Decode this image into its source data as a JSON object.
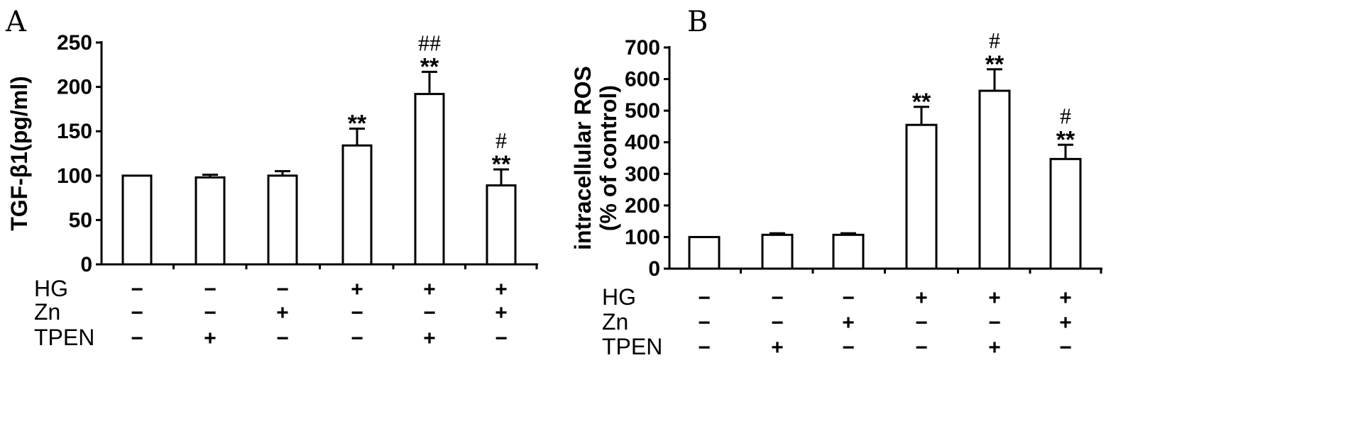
{
  "chart_data": [
    {
      "type": "bar",
      "panel_label": "A",
      "ylabel": "TGF-β1(pg/ml)",
      "ylim": [
        0,
        250
      ],
      "yticks": [
        0,
        50,
        100,
        150,
        200,
        250
      ],
      "yticklabels": [
        "0",
        "50",
        "100",
        "150",
        "200",
        "250"
      ],
      "values": [
        100,
        98,
        100,
        134,
        192,
        89
      ],
      "errors": [
        0,
        3,
        5,
        19,
        25,
        18
      ],
      "star_marks": [
        "",
        "",
        "",
        "**",
        "**",
        "**"
      ],
      "hash_marks": [
        "",
        "",
        "",
        "",
        "##",
        "#"
      ],
      "conditions": [
        {
          "label": "HG",
          "signs": [
            "−",
            "−",
            "−",
            "+",
            "+",
            "+"
          ]
        },
        {
          "label": "Zn",
          "signs": [
            "−",
            "−",
            "+",
            "−",
            "−",
            "+"
          ]
        },
        {
          "label": "TPEN",
          "signs": [
            "−",
            "+",
            "−",
            "−",
            "+",
            "−"
          ]
        }
      ],
      "bar_fill": "#ffffff",
      "stroke_color": "#000000"
    },
    {
      "type": "bar",
      "panel_label": "B",
      "ylabel": [
        "intracellular ROS",
        "(% of control)"
      ],
      "ylim": [
        0,
        700
      ],
      "yticks": [
        0,
        100,
        200,
        300,
        400,
        500,
        600,
        700
      ],
      "yticklabels": [
        "0",
        "100",
        "200",
        "300",
        "400",
        "500",
        "600",
        "700"
      ],
      "values": [
        100,
        107,
        107,
        455,
        563,
        347
      ],
      "errors": [
        0,
        5,
        5,
        57,
        68,
        45
      ],
      "star_marks": [
        "",
        "",
        "",
        "**",
        "**",
        "**"
      ],
      "hash_marks": [
        "",
        "",
        "",
        "",
        "#",
        "#"
      ],
      "conditions": [
        {
          "label": "HG",
          "signs": [
            "−",
            "−",
            "−",
            "+",
            "+",
            "+"
          ]
        },
        {
          "label": "Zn",
          "signs": [
            "−",
            "−",
            "+",
            "−",
            "−",
            "+"
          ]
        },
        {
          "label": "TPEN",
          "signs": [
            "−",
            "+",
            "−",
            "−",
            "+",
            "−"
          ]
        }
      ],
      "bar_fill": "#ffffff",
      "stroke_color": "#000000"
    }
  ]
}
